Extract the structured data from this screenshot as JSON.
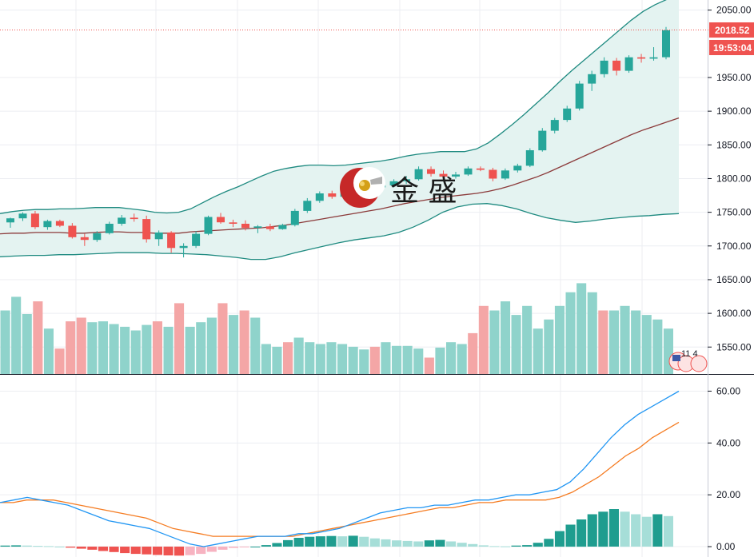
{
  "watermark": {
    "text": "金 盛"
  },
  "price_panel": {
    "last_price_label": "2018.52",
    "countdown_label": "19:53:04",
    "axis_ticks": [
      "2050.00",
      "1950.00",
      "1900.00",
      "1850.00",
      "1800.00",
      "1750.00",
      "1700.00",
      "1650.00",
      "1600.00",
      "1550.00"
    ],
    "mini_badge_text": "11 4"
  },
  "macd_panel": {
    "axis_ticks": [
      "60.00",
      "40.00",
      "20.00",
      "0.00"
    ]
  },
  "colors": {
    "up": "#26a69a",
    "down": "#ef5350",
    "volume_up": "#8fd3cb",
    "volume_down": "#f4a6a6",
    "band": "#1e8a80",
    "band_fill": "#e4f3f1",
    "ma": "#8b3a3a",
    "macd_line": "#2196f3",
    "signal_line": "#f57c22",
    "hist_up_strong": "#1f9d8f",
    "hist_up_weak": "#a6ded8",
    "hist_down_strong": "#ef5350",
    "hist_down_weak": "#f7b3c1",
    "grid": "#eceef2"
  },
  "chart_data": [
    {
      "type": "candlestick",
      "ylim": [
        1510,
        2065
      ],
      "candles": [
        [
          1735,
          1742,
          1727,
          1741
        ],
        [
          1741,
          1750,
          1737,
          1748
        ],
        [
          1748,
          1752,
          1725,
          1728
        ],
        [
          1728,
          1739,
          1724,
          1737
        ],
        [
          1737,
          1739,
          1728,
          1730
        ],
        [
          1730,
          1734,
          1711,
          1713
        ],
        [
          1713,
          1718,
          1700,
          1709
        ],
        [
          1709,
          1722,
          1706,
          1719
        ],
        [
          1719,
          1736,
          1717,
          1733
        ],
        [
          1733,
          1746,
          1730,
          1742
        ],
        [
          1742,
          1748,
          1736,
          1740
        ],
        [
          1740,
          1745,
          1705,
          1710
        ],
        [
          1710,
          1723,
          1700,
          1720
        ],
        [
          1720,
          1722,
          1690,
          1697
        ],
        [
          1697,
          1704,
          1683,
          1700
        ],
        [
          1700,
          1722,
          1697,
          1718
        ],
        [
          1718,
          1745,
          1716,
          1743
        ],
        [
          1743,
          1749,
          1733,
          1735
        ],
        [
          1735,
          1739,
          1728,
          1733
        ],
        [
          1733,
          1738,
          1723,
          1727
        ],
        [
          1727,
          1731,
          1719,
          1729
        ],
        [
          1729,
          1733,
          1722,
          1725
        ],
        [
          1725,
          1733,
          1724,
          1731
        ],
        [
          1731,
          1755,
          1729,
          1752
        ],
        [
          1752,
          1771,
          1749,
          1767
        ],
        [
          1767,
          1781,
          1764,
          1778
        ],
        [
          1778,
          1782,
          1770,
          1773
        ],
        [
          1773,
          1790,
          1771,
          1787
        ],
        [
          1787,
          1795,
          1779,
          1782
        ],
        [
          1782,
          1791,
          1778,
          1787
        ],
        [
          1787,
          1794,
          1784,
          1790
        ],
        [
          1790,
          1799,
          1787,
          1796
        ],
        [
          1796,
          1804,
          1792,
          1799
        ],
        [
          1799,
          1818,
          1797,
          1814
        ],
        [
          1814,
          1818,
          1803,
          1807
        ],
        [
          1807,
          1812,
          1799,
          1803
        ],
        [
          1803,
          1810,
          1800,
          1806
        ],
        [
          1806,
          1818,
          1804,
          1815
        ],
        [
          1815,
          1818,
          1811,
          1813
        ],
        [
          1813,
          1816,
          1796,
          1800
        ],
        [
          1800,
          1815,
          1798,
          1812
        ],
        [
          1812,
          1822,
          1809,
          1819
        ],
        [
          1819,
          1845,
          1817,
          1842
        ],
        [
          1842,
          1875,
          1840,
          1871
        ],
        [
          1871,
          1890,
          1867,
          1887
        ],
        [
          1887,
          1908,
          1884,
          1904
        ],
        [
          1904,
          1945,
          1901,
          1941
        ],
        [
          1941,
          1960,
          1930,
          1955
        ],
        [
          1955,
          1980,
          1950,
          1975
        ],
        [
          1975,
          1979,
          1953,
          1960
        ],
        [
          1960,
          1983,
          1957,
          1980
        ],
        [
          1980,
          1985,
          1972,
          1978
        ],
        [
          1978,
          1995,
          1975,
          1980
        ],
        [
          1980,
          2025,
          1977,
          2020
        ]
      ],
      "ma": [
        1718,
        1719,
        1719,
        1720,
        1720,
        1720,
        1719,
        1719,
        1720,
        1721,
        1721,
        1720,
        1720,
        1719,
        1719,
        1719,
        1721,
        1722,
        1723,
        1724,
        1725,
        1726,
        1727,
        1729,
        1731,
        1734,
        1737,
        1740,
        1743,
        1746,
        1749,
        1752,
        1755,
        1759,
        1763,
        1766,
        1769,
        1772,
        1774,
        1776,
        1778,
        1781,
        1785,
        1790,
        1796,
        1802,
        1809,
        1817,
        1825,
        1833,
        1841,
        1849,
        1857,
        1865,
        1872,
        1878,
        1884,
        1890
      ],
      "upper_band": [
        1748,
        1751,
        1753,
        1754,
        1754,
        1755,
        1755,
        1756,
        1757,
        1757,
        1757,
        1755,
        1753,
        1750,
        1749,
        1750,
        1755,
        1764,
        1773,
        1781,
        1788,
        1796,
        1804,
        1811,
        1815,
        1818,
        1820,
        1820,
        1819,
        1820,
        1822,
        1824,
        1826,
        1829,
        1833,
        1836,
        1838,
        1840,
        1840,
        1840,
        1844,
        1853,
        1866,
        1880,
        1895,
        1911,
        1927,
        1944,
        1960,
        1975,
        1990,
        2005,
        2020,
        2035,
        2048,
        2058,
        2066,
        2072
      ],
      "lower_band": [
        1684,
        1685,
        1686,
        1686,
        1687,
        1687,
        1688,
        1689,
        1690,
        1690,
        1690,
        1689,
        1689,
        1688,
        1687,
        1685,
        1683,
        1680,
        1680,
        1684,
        1690,
        1695,
        1700,
        1705,
        1709,
        1712,
        1715,
        1720,
        1728,
        1738,
        1750,
        1758,
        1762,
        1763,
        1760,
        1755,
        1748,
        1742,
        1738,
        1735,
        1737,
        1740,
        1742,
        1744,
        1745,
        1747,
        1748
      ],
      "volume": [
        70,
        85,
        66,
        80,
        50,
        28,
        58,
        62,
        57,
        58,
        55,
        52,
        48,
        54,
        58,
        52,
        78,
        52,
        57,
        62,
        78,
        65,
        70,
        62,
        33,
        30,
        35,
        40,
        35,
        33,
        35,
        33,
        30,
        27,
        30,
        35,
        31,
        31,
        28,
        18,
        29,
        35,
        33,
        45,
        75,
        70,
        80,
        65,
        75,
        50,
        60,
        75,
        90,
        100,
        90,
        70,
        70,
        75,
        70,
        65,
        60,
        50
      ],
      "volume_dir": [
        1,
        1,
        1,
        0,
        1,
        0,
        0,
        0,
        1,
        1,
        1,
        1,
        1,
        1,
        0,
        1,
        0,
        1,
        1,
        1,
        0,
        1,
        0,
        1,
        1,
        1,
        0,
        1,
        1,
        1,
        1,
        1,
        1,
        1,
        0,
        1,
        1,
        1,
        1,
        0,
        1,
        1,
        1,
        0,
        0,
        1,
        1,
        1,
        1,
        1,
        1,
        1,
        1,
        1,
        1,
        0,
        1,
        1,
        1,
        1,
        1,
        1
      ],
      "vol_max": 110
    },
    {
      "type": "macd",
      "ylim": [
        -4,
        66
      ],
      "y_ticks": [
        60,
        40,
        20,
        0
      ],
      "macd": [
        17,
        18,
        19,
        18,
        17,
        16,
        14,
        12,
        10,
        9,
        8,
        7,
        5,
        3,
        1,
        0,
        1,
        2,
        3,
        4,
        4,
        4,
        5,
        5,
        6,
        7,
        9,
        11,
        13,
        14,
        15,
        15,
        16,
        16,
        17,
        18,
        18,
        19,
        20,
        20,
        21,
        22,
        25,
        30,
        36,
        42,
        47,
        51,
        54,
        57,
        60
      ],
      "signal": [
        17,
        17,
        18,
        18,
        18,
        17,
        16,
        15,
        14,
        13,
        12,
        11,
        9,
        7,
        6,
        5,
        4,
        4,
        4,
        4,
        4,
        4,
        4,
        5,
        6,
        7,
        8,
        9,
        10,
        11,
        12,
        13,
        14,
        15,
        15,
        16,
        17,
        17,
        18,
        18,
        18,
        18,
        19,
        21,
        24,
        27,
        31,
        35,
        38,
        42,
        45,
        48
      ],
      "histogram": [
        0.4,
        0.5,
        0.4,
        0.3,
        0.2,
        0.0,
        -0.4,
        -0.8,
        -1.2,
        -1.7,
        -2.1,
        -2.5,
        -2.8,
        -3.0,
        -3.2,
        -3.4,
        -3.5,
        -3.3,
        -2.8,
        -2.0,
        -1.2,
        -0.5,
        -0.2,
        0.0,
        0.6,
        1.4,
        2.5,
        3.4,
        3.8,
        4.0,
        4.1,
        4.0,
        4.2,
        3.8,
        3.2,
        2.8,
        2.4,
        2.2,
        2.0,
        2.4,
        2.6,
        2.0,
        1.5,
        1.0,
        0.5,
        0.2,
        0.1,
        0.4,
        0.6,
        1.5,
        3.0,
        6.0,
        8.5,
        10.5,
        12.5,
        13.5,
        14.5,
        13.5,
        12.5,
        11.5,
        12.5,
        11.8
      ]
    }
  ]
}
